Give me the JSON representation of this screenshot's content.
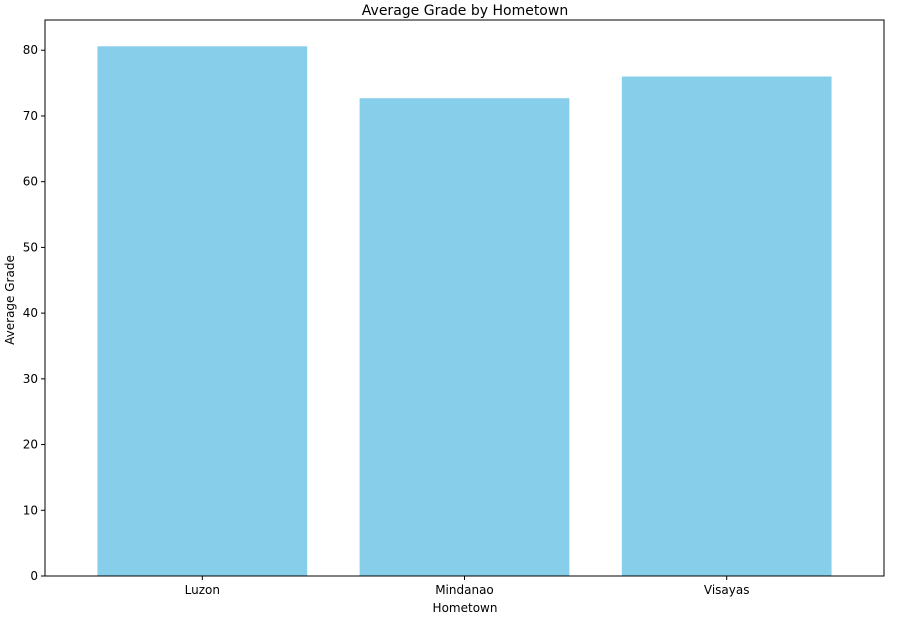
{
  "chart_data": {
    "type": "bar",
    "title": "Average Grade by Hometown",
    "xlabel": "Hometown",
    "ylabel": "Average Grade",
    "categories": [
      "Luzon",
      "Mindanao",
      "Visayas"
    ],
    "values": [
      80.6,
      72.7,
      76.0
    ],
    "ylim": [
      0,
      84.6
    ],
    "yticks": [
      0,
      10,
      20,
      30,
      40,
      50,
      60,
      70,
      80
    ],
    "bar_color": "#87CEEB",
    "grid": false,
    "legend": "none"
  }
}
